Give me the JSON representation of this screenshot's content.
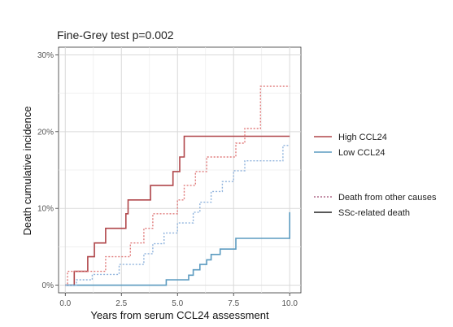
{
  "chart_data": {
    "type": "line",
    "title": "Fine-Grey test p=0.002",
    "xlabel": "Years from serum CCL24 assessment",
    "ylabel": "Death cumulative incidence",
    "xlim": [
      -0.3,
      10.5
    ],
    "ylim": [
      -0.01,
      0.31
    ],
    "x_ticks": [
      0,
      2.5,
      5,
      7.5,
      10
    ],
    "x_tick_labels": [
      "0.0",
      "2.5",
      "5.0",
      "7.5",
      "10.0"
    ],
    "y_ticks": [
      0,
      0.1,
      0.2,
      0.3
    ],
    "y_tick_labels": [
      "0%",
      "10%",
      "20%",
      "30%"
    ],
    "grid": true,
    "step_plot": true,
    "legend": {
      "placement": "right",
      "color_entries": [
        {
          "label": "High CCL24",
          "color": "#b0464a"
        },
        {
          "label": "Low CCL24",
          "color": "#5b9bc0"
        }
      ],
      "style_entries": [
        {
          "label": "Death from other causes",
          "linestyle": "dotted",
          "color": "#b06a8a"
        },
        {
          "label": "SSc-related death",
          "linestyle": "solid",
          "color": "#222222"
        }
      ]
    },
    "series": [
      {
        "group": "High CCL24",
        "cause": "SSc-related death",
        "color": "#b0464a",
        "linestyle": "solid",
        "x": [
          0.0,
          0.4,
          1.0,
          1.3,
          1.8,
          2.7,
          2.8,
          3.3,
          3.8,
          4.3,
          4.8,
          5.1,
          5.3,
          10.0
        ],
        "y": [
          0.0,
          0.018,
          0.037,
          0.055,
          0.074,
          0.093,
          0.111,
          0.111,
          0.13,
          0.13,
          0.148,
          0.167,
          0.194,
          0.194
        ]
      },
      {
        "group": "High CCL24",
        "cause": "Death from other causes",
        "color": "#e07b7b",
        "linestyle": "dotted",
        "x": [
          0.0,
          0.1,
          0.4,
          1.8,
          2.9,
          3.5,
          3.9,
          4.3,
          5.0,
          5.3,
          5.8,
          6.3,
          7.6,
          8.0,
          8.7,
          9.0,
          10.0
        ],
        "y": [
          0.0,
          0.018,
          0.018,
          0.037,
          0.055,
          0.074,
          0.093,
          0.093,
          0.111,
          0.13,
          0.148,
          0.167,
          0.185,
          0.204,
          0.259,
          0.259,
          0.259
        ]
      },
      {
        "group": "Low CCL24",
        "cause": "SSc-related death",
        "color": "#5b9bc0",
        "linestyle": "solid",
        "x": [
          0.0,
          2.5,
          4.5,
          5.5,
          5.7,
          6.0,
          6.3,
          6.5,
          6.9,
          7.6,
          9.0,
          10.0,
          10.0
        ],
        "y": [
          0.0,
          0.0,
          0.007,
          0.013,
          0.02,
          0.027,
          0.033,
          0.04,
          0.047,
          0.061,
          0.061,
          0.061,
          0.095
        ]
      },
      {
        "group": "Low CCL24",
        "cause": "Death from other causes",
        "color": "#8fb3dd",
        "linestyle": "dotted",
        "x": [
          0.0,
          0.5,
          1.2,
          2.4,
          3.5,
          3.9,
          4.4,
          5.0,
          5.7,
          6.0,
          6.5,
          7.0,
          7.5,
          8.0,
          8.4,
          9.3,
          9.7,
          10.0
        ],
        "y": [
          0.0,
          0.007,
          0.014,
          0.027,
          0.041,
          0.054,
          0.068,
          0.081,
          0.095,
          0.108,
          0.122,
          0.135,
          0.149,
          0.162,
          0.162,
          0.162,
          0.182,
          0.182
        ]
      }
    ]
  }
}
